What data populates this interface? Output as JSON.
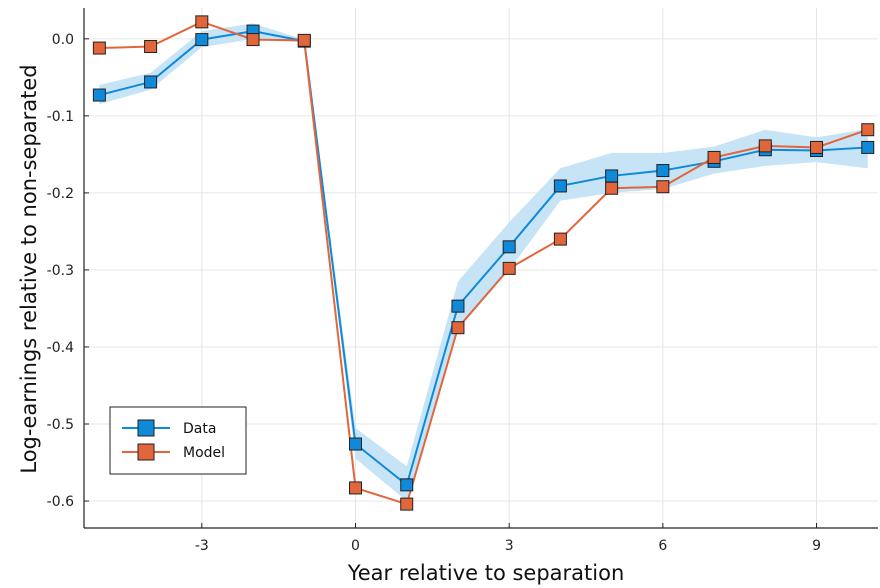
{
  "chart_data": {
    "type": "line",
    "xlabel": "Year relative to separation",
    "ylabel": "Log-earnings relative to non-separated",
    "xlim": [
      -5.3,
      10.2
    ],
    "ylim": [
      -0.635,
      0.04
    ],
    "xticks": [
      -3,
      0,
      3,
      6,
      9
    ],
    "xtick_labels": [
      "-3",
      "0",
      "3",
      "6",
      "9"
    ],
    "yticks": [
      0.0,
      -0.1,
      -0.2,
      -0.3,
      -0.4,
      -0.5,
      -0.6
    ],
    "ytick_labels": [
      "0.0",
      "-0.1",
      "-0.2",
      "-0.3",
      "-0.4",
      "-0.5",
      "-0.6"
    ],
    "grid": true,
    "legend_position": "bottom-left",
    "x": [
      -5,
      -4,
      -3,
      -2,
      -1,
      0,
      1,
      2,
      3,
      4,
      5,
      6,
      7,
      8,
      9,
      10
    ],
    "series": [
      {
        "name": "Data",
        "color": "#0f8ad8",
        "band_color": "#c7e4f7",
        "values": [
          -0.073,
          -0.056,
          -0.001,
          0.01,
          -0.003,
          -0.526,
          -0.579,
          -0.347,
          -0.27,
          -0.191,
          -0.178,
          -0.171,
          -0.159,
          -0.144,
          -0.145,
          -0.141
        ],
        "lower": [
          -0.085,
          -0.066,
          -0.011,
          0.0,
          -0.005,
          -0.545,
          -0.6,
          -0.378,
          -0.3,
          -0.21,
          -0.2,
          -0.195,
          -0.175,
          -0.165,
          -0.16,
          -0.168
        ],
        "upper": [
          -0.06,
          -0.044,
          0.01,
          0.02,
          -0.001,
          -0.505,
          -0.555,
          -0.315,
          -0.238,
          -0.168,
          -0.148,
          -0.148,
          -0.14,
          -0.118,
          -0.128,
          -0.117
        ]
      },
      {
        "name": "Model",
        "color": "#e1663c",
        "values": [
          -0.012,
          -0.01,
          0.022,
          -0.001,
          -0.002,
          -0.583,
          -0.604,
          -0.375,
          -0.298,
          -0.26,
          -0.194,
          -0.192,
          -0.154,
          -0.139,
          -0.141,
          -0.118
        ]
      }
    ]
  }
}
